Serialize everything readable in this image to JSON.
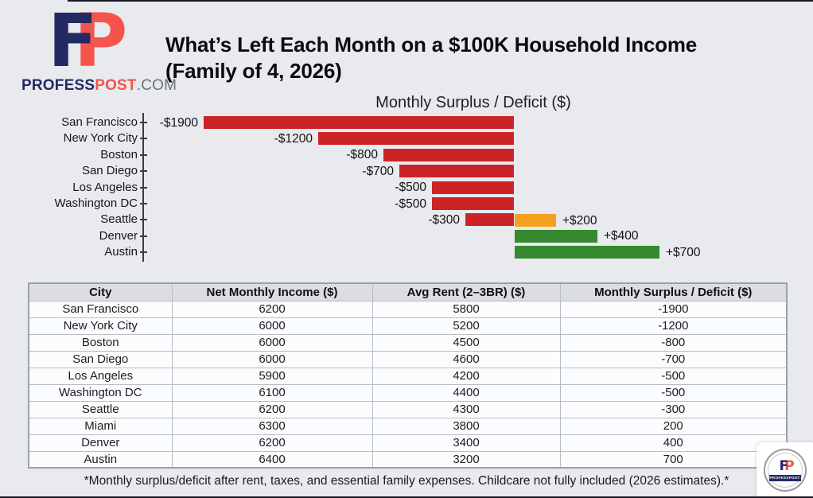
{
  "page": {
    "background": "#e8eaed",
    "edge_line_color": "#181822"
  },
  "brand": {
    "monogram_f": "F",
    "monogram_p": "P",
    "monogram_f_color": "#232a63",
    "monogram_p_color": "#f4544c",
    "name_primary": "PROFESS",
    "name_accent": "POST",
    "name_suffix": ".COM"
  },
  "title": {
    "line1": "What’s Left Each Month on a $100K Household Income",
    "line2": "(Family of 4, 2026)"
  },
  "chart_data": {
    "type": "bar",
    "orientation": "horizontal",
    "title": "Monthly Surplus / Deficit ($)",
    "xlim": [
      -2000,
      800
    ],
    "grid": false,
    "axis_categories": [
      "San Francisco",
      "New York City",
      "Boston",
      "San Diego",
      "Los Angeles",
      "Washington DC",
      "Seattle",
      "Denver",
      "Austin"
    ],
    "bars": [
      {
        "city": "San Francisco",
        "value": -1900,
        "label": "-$1900",
        "row": 0,
        "color": "negative"
      },
      {
        "city": "New York City",
        "value": -1200,
        "label": "-$1200",
        "row": 1,
        "color": "negative"
      },
      {
        "city": "Boston",
        "value": -800,
        "label": "-$800",
        "row": 2,
        "color": "negative"
      },
      {
        "city": "San Diego",
        "value": -700,
        "label": "-$700",
        "row": 3,
        "color": "negative"
      },
      {
        "city": "Los Angeles",
        "value": -500,
        "label": "-$500",
        "row": 4,
        "color": "negative"
      },
      {
        "city": "Washington DC",
        "value": -500,
        "label": "-$500",
        "row": 5,
        "color": "negative"
      },
      {
        "city": "Seattle",
        "value": -300,
        "label": "-$300",
        "row": 6,
        "color": "negative"
      },
      {
        "city": "Miami",
        "value": 200,
        "label": "+$200",
        "row": 6,
        "color": "highlight"
      },
      {
        "city": "Denver",
        "value": 400,
        "label": "+$400",
        "row": 7,
        "color": "positive"
      },
      {
        "city": "Austin",
        "value": 700,
        "label": "+$700",
        "row": 8,
        "color": "positive"
      }
    ],
    "palette": {
      "negative": "#cb2428",
      "positive": "#35892f",
      "highlight": "#f5a120"
    }
  },
  "table": {
    "headers": [
      "City",
      "Net Monthly Income ($)",
      "Avg Rent (2–3BR) ($)",
      "Monthly Surplus / Deficit ($)"
    ],
    "rows": [
      [
        "San Francisco",
        "6200",
        "5800",
        "-1900"
      ],
      [
        "New York City",
        "6000",
        "5200",
        "-1200"
      ],
      [
        "Boston",
        "6000",
        "4500",
        "-800"
      ],
      [
        "San Diego",
        "6000",
        "4600",
        "-700"
      ],
      [
        "Los Angeles",
        "5900",
        "4200",
        "-500"
      ],
      [
        "Washington DC",
        "6100",
        "4400",
        "-500"
      ],
      [
        "Seattle",
        "6200",
        "4300",
        "-300"
      ],
      [
        "Miami",
        "6300",
        "3800",
        "200"
      ],
      [
        "Denver",
        "6200",
        "3400",
        "400"
      ],
      [
        "Austin",
        "6400",
        "3200",
        "700"
      ]
    ]
  },
  "footnote": {
    "text": "*Monthly surplus/deficit after rent, taxes, and essential family expenses. Childcare not fully included (2026 estimates).*"
  },
  "badge": {
    "monogram_f": "F",
    "monogram_p": "P",
    "sub_label": "PROFESSPOST"
  }
}
